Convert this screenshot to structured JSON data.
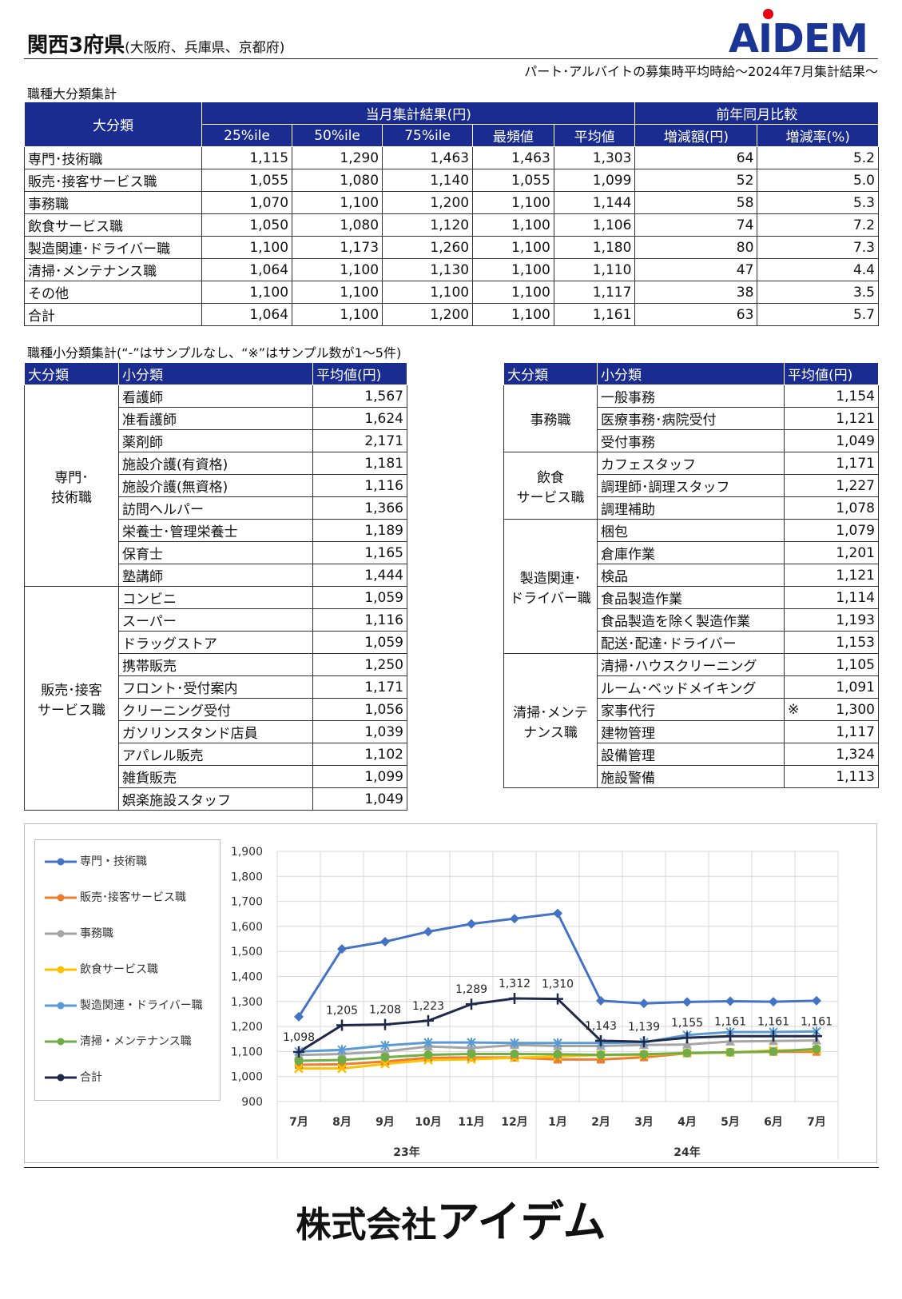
{
  "header": {
    "title": "関西3府県",
    "title_sub": "(大阪府、兵庫県、京都府)",
    "brand": "AIDEM",
    "subtitle": "パート･アルバイトの募集時平均時給～2024年7月集計結果～"
  },
  "section1": {
    "title": "職種大分類集計",
    "head_category": "大分類",
    "head_current": "当月集計結果(円)",
    "head_prev": "前年同月比較",
    "cols": [
      "25%ile",
      "50%ile",
      "75%ile",
      "最頻値",
      "平均値",
      "増減額(円)",
      "増減率(%)"
    ],
    "rows": [
      {
        "name": "専門･技術職",
        "v": [
          "1,115",
          "1,290",
          "1,463",
          "1,463",
          "1,303",
          "64",
          "5.2"
        ]
      },
      {
        "name": "販売･接客サービス職",
        "v": [
          "1,055",
          "1,080",
          "1,140",
          "1,055",
          "1,099",
          "52",
          "5.0"
        ]
      },
      {
        "name": "事務職",
        "v": [
          "1,070",
          "1,100",
          "1,200",
          "1,100",
          "1,144",
          "58",
          "5.3"
        ]
      },
      {
        "name": "飲食サービス職",
        "v": [
          "1,050",
          "1,080",
          "1,120",
          "1,100",
          "1,106",
          "74",
          "7.2"
        ]
      },
      {
        "name": "製造関連･ドライバー職",
        "v": [
          "1,100",
          "1,173",
          "1,260",
          "1,100",
          "1,180",
          "80",
          "7.3"
        ]
      },
      {
        "name": "清掃･メンテナンス職",
        "v": [
          "1,064",
          "1,100",
          "1,130",
          "1,100",
          "1,110",
          "47",
          "4.4"
        ]
      },
      {
        "name": "その他",
        "v": [
          "1,100",
          "1,100",
          "1,100",
          "1,100",
          "1,117",
          "38",
          "3.5"
        ]
      },
      {
        "name": "合計",
        "v": [
          "1,064",
          "1,100",
          "1,200",
          "1,100",
          "1,161",
          "63",
          "5.7"
        ]
      }
    ]
  },
  "section2": {
    "title": "職種小分類集計(“-”はサンプルなし、“※”はサンプル数が1～5件)",
    "head_major": "大分類",
    "head_minor": "小分類",
    "head_avg": "平均値(円)",
    "left": [
      {
        "group": "専門･\n技術職",
        "items": [
          {
            "name": "看護師",
            "avg": "1,567"
          },
          {
            "name": "准看護師",
            "avg": "1,624"
          },
          {
            "name": "薬剤師",
            "avg": "2,171"
          },
          {
            "name": "施設介護(有資格)",
            "avg": "1,181"
          },
          {
            "name": "施設介護(無資格)",
            "avg": "1,116"
          },
          {
            "name": "訪問ヘルパー",
            "avg": "1,366"
          },
          {
            "name": "栄養士･管理栄養士",
            "avg": "1,189"
          },
          {
            "name": "保育士",
            "avg": "1,165"
          },
          {
            "name": "塾講師",
            "avg": "1,444"
          }
        ]
      },
      {
        "group": "販売･接客\nサービス職",
        "items": [
          {
            "name": "コンビニ",
            "avg": "1,059"
          },
          {
            "name": "スーパー",
            "avg": "1,116"
          },
          {
            "name": "ドラッグストア",
            "avg": "1,059"
          },
          {
            "name": "携帯販売",
            "avg": "1,250"
          },
          {
            "name": "フロント･受付案内",
            "avg": "1,171"
          },
          {
            "name": "クリーニング受付",
            "avg": "1,056"
          },
          {
            "name": "ガソリンスタンド店員",
            "avg": "1,039"
          },
          {
            "name": "アパレル販売",
            "avg": "1,102"
          },
          {
            "name": "雑貨販売",
            "avg": "1,099"
          },
          {
            "name": "娯楽施設スタッフ",
            "avg": "1,049"
          }
        ]
      }
    ],
    "right": [
      {
        "group": "事務職",
        "items": [
          {
            "name": "一般事務",
            "avg": "1,154"
          },
          {
            "name": "医療事務･病院受付",
            "avg": "1,121"
          },
          {
            "name": "受付事務",
            "avg": "1,049"
          }
        ]
      },
      {
        "group": "飲食\nサービス職",
        "items": [
          {
            "name": "カフェスタッフ",
            "avg": "1,171"
          },
          {
            "name": "調理師･調理スタッフ",
            "avg": "1,227"
          },
          {
            "name": "調理補助",
            "avg": "1,078"
          }
        ]
      },
      {
        "group": "製造関連･\nドライバー職",
        "items": [
          {
            "name": "梱包",
            "avg": "1,079"
          },
          {
            "name": "倉庫作業",
            "avg": "1,201"
          },
          {
            "name": "検品",
            "avg": "1,121"
          },
          {
            "name": "食品製造作業",
            "avg": "1,114"
          },
          {
            "name": "食品製造を除く製造作業",
            "avg": "1,193"
          },
          {
            "name": "配送･配達･ドライバー",
            "avg": "1,153"
          }
        ]
      },
      {
        "group": "清掃･メンテ\nナンス職",
        "items": [
          {
            "name": "清掃･ハウスクリーニング",
            "avg": "1,105"
          },
          {
            "name": "ルーム･ベッドメイキング",
            "avg": "1,091"
          },
          {
            "name": "家事代行",
            "avg": "1,300",
            "mark": "※"
          },
          {
            "name": "建物管理",
            "avg": "1,117"
          },
          {
            "name": "設備管理",
            "avg": "1,324"
          },
          {
            "name": "施設警備",
            "avg": "1,113"
          }
        ]
      }
    ]
  },
  "chart_data": {
    "type": "line",
    "categories": [
      "7月",
      "8月",
      "9月",
      "10月",
      "11月",
      "12月",
      "1月",
      "2月",
      "3月",
      "4月",
      "5月",
      "6月",
      "7月"
    ],
    "year_groups": [
      {
        "label": "23年",
        "span": 6
      },
      {
        "label": "24年",
        "span": 7
      }
    ],
    "ylim": [
      900,
      1900
    ],
    "yticks": [
      900,
      1000,
      1100,
      1200,
      1300,
      1400,
      1500,
      1600,
      1700,
      1800,
      1900
    ],
    "ytick_labels": [
      "900",
      "1,000",
      "1,100",
      "1,200",
      "1,300",
      "1,400",
      "1,500",
      "1,600",
      "1,700",
      "1,800",
      "1,900"
    ],
    "grid": true,
    "legend": "left",
    "series": [
      {
        "name": "専門・技術職",
        "color": "#4472c4",
        "marker": "diamond",
        "values": [
          1239,
          1510,
          1539,
          1579,
          1610,
          1631,
          1652,
          1303,
          1292,
          1298,
          1301,
          1299,
          1303
        ]
      },
      {
        "name": "販売･接客サービス職",
        "color": "#ed7d31",
        "marker": "square",
        "values": [
          1047,
          1049,
          1060,
          1075,
          1076,
          1076,
          1068,
          1068,
          1077,
          1093,
          1097,
          1099,
          1099
        ]
      },
      {
        "name": "事務職",
        "color": "#a5a5a5",
        "marker": "triangle",
        "values": [
          1086,
          1090,
          1100,
          1120,
          1114,
          1126,
          1122,
          1122,
          1126,
          1128,
          1140,
          1142,
          1144
        ]
      },
      {
        "name": "飲食サービス職",
        "color": "#ffc000",
        "marker": "x",
        "values": [
          1032,
          1032,
          1050,
          1066,
          1069,
          1075,
          1080,
          1086,
          1086,
          1093,
          1096,
          1104,
          1106
        ]
      },
      {
        "name": "製造関連・ドライバー職",
        "color": "#5b9bd5",
        "marker": "star",
        "values": [
          1100,
          1107,
          1124,
          1136,
          1136,
          1134,
          1134,
          1134,
          1137,
          1166,
          1178,
          1178,
          1180
        ]
      },
      {
        "name": "清掃・メンテナンス職",
        "color": "#70ad47",
        "marker": "circle",
        "values": [
          1063,
          1066,
          1077,
          1087,
          1090,
          1090,
          1089,
          1087,
          1089,
          1094,
          1097,
          1100,
          1110
        ]
      },
      {
        "name": "合計",
        "color": "#1f2a4a",
        "marker": "plus",
        "values": [
          1098,
          1205,
          1208,
          1223,
          1289,
          1312,
          1310,
          1143,
          1139,
          1155,
          1161,
          1161,
          1161
        ],
        "labels": [
          "1,098",
          "1,205",
          "1,208",
          "1,223",
          "1,289",
          "1,312",
          "1,310",
          "1,143",
          "1,139",
          "1,155",
          "1,161",
          "1,161",
          "1,161"
        ]
      }
    ]
  },
  "footer": {
    "company_prefix": "株式会社",
    "company_name": "アイデム"
  }
}
